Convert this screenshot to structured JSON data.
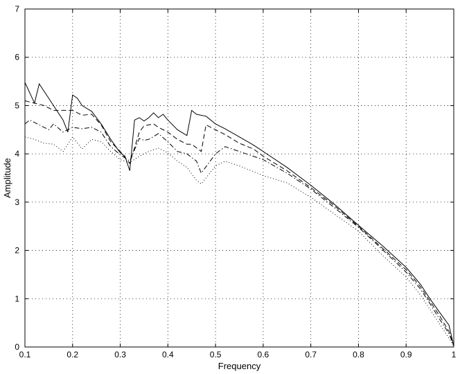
{
  "chart_data": {
    "type": "line",
    "title": "",
    "xlabel": "Frequency",
    "ylabel": "Amplitude",
    "xlim": [
      0.1,
      1
    ],
    "ylim": [
      0,
      7
    ],
    "x_ticks": [
      0.1,
      0.2,
      0.3,
      0.4,
      0.5,
      0.6,
      0.7,
      0.8,
      0.9,
      1
    ],
    "x_tick_labels": [
      "0.1",
      "0.2",
      "0.3",
      "0.4",
      "0.5",
      "0.6",
      "0.7",
      "0.8",
      "0.9",
      "1"
    ],
    "y_ticks": [
      0,
      1,
      2,
      3,
      4,
      5,
      6,
      7
    ],
    "y_tick_labels": [
      "0",
      "1",
      "2",
      "3",
      "4",
      "5",
      "6",
      "7"
    ],
    "grid": true,
    "legend": "none",
    "series": [
      {
        "style": "solid",
        "x": [
          0.1,
          0.12,
          0.13,
          0.15,
          0.18,
          0.19,
          0.2,
          0.21,
          0.22,
          0.24,
          0.26,
          0.28,
          0.3,
          0.31,
          0.32,
          0.33,
          0.34,
          0.35,
          0.36,
          0.37,
          0.38,
          0.39,
          0.4,
          0.42,
          0.44,
          0.45,
          0.46,
          0.48,
          0.5,
          0.52,
          0.55,
          0.58,
          0.6,
          0.65,
          0.7,
          0.75,
          0.8,
          0.85,
          0.9,
          0.93,
          0.95,
          0.97,
          0.99,
          1.0
        ],
        "y": [
          5.48,
          5.05,
          5.45,
          5.15,
          4.7,
          4.45,
          5.22,
          5.15,
          5.0,
          4.88,
          4.62,
          4.3,
          4.02,
          3.95,
          3.65,
          4.7,
          4.75,
          4.68,
          4.75,
          4.85,
          4.75,
          4.82,
          4.7,
          4.5,
          4.38,
          4.9,
          4.82,
          4.78,
          4.62,
          4.52,
          4.35,
          4.18,
          4.05,
          3.72,
          3.35,
          2.95,
          2.52,
          2.1,
          1.65,
          1.3,
          1.0,
          0.72,
          0.45,
          0.02
        ]
      },
      {
        "style": "dashed",
        "x": [
          0.1,
          0.12,
          0.14,
          0.16,
          0.2,
          0.22,
          0.24,
          0.26,
          0.28,
          0.3,
          0.32,
          0.34,
          0.35,
          0.37,
          0.38,
          0.4,
          0.42,
          0.44,
          0.45,
          0.47,
          0.48,
          0.5,
          0.52,
          0.55,
          0.58,
          0.6,
          0.65,
          0.7,
          0.75,
          0.8,
          0.85,
          0.9,
          0.93,
          0.95,
          0.97,
          0.99,
          1.0
        ],
        "y": [
          5.1,
          5.05,
          5.0,
          4.9,
          4.9,
          4.8,
          4.82,
          4.6,
          4.25,
          4.05,
          3.8,
          4.45,
          4.58,
          4.62,
          4.55,
          4.45,
          4.3,
          4.2,
          4.2,
          4.05,
          4.6,
          4.5,
          4.4,
          4.22,
          4.1,
          3.95,
          3.65,
          3.3,
          2.92,
          2.5,
          2.05,
          1.6,
          1.25,
          0.95,
          0.65,
          0.32,
          0.02
        ]
      },
      {
        "style": "dash-dot",
        "x": [
          0.1,
          0.11,
          0.13,
          0.15,
          0.16,
          0.18,
          0.2,
          0.22,
          0.24,
          0.26,
          0.28,
          0.3,
          0.32,
          0.34,
          0.35,
          0.36,
          0.38,
          0.4,
          0.42,
          0.44,
          0.46,
          0.47,
          0.5,
          0.52,
          0.55,
          0.6,
          0.65,
          0.7,
          0.75,
          0.8,
          0.85,
          0.9,
          0.93,
          0.95,
          0.97,
          0.99,
          1.0
        ],
        "y": [
          4.62,
          4.7,
          4.6,
          4.5,
          4.62,
          4.45,
          4.55,
          4.52,
          4.55,
          4.45,
          4.15,
          3.98,
          3.85,
          4.32,
          4.28,
          4.3,
          4.42,
          4.25,
          4.05,
          4.0,
          3.85,
          3.6,
          4.0,
          4.15,
          4.05,
          3.88,
          3.6,
          3.27,
          2.88,
          2.48,
          2.02,
          1.55,
          1.2,
          0.9,
          0.58,
          0.28,
          0.02
        ]
      },
      {
        "style": "dotted",
        "x": [
          0.1,
          0.12,
          0.14,
          0.16,
          0.18,
          0.2,
          0.22,
          0.24,
          0.26,
          0.28,
          0.3,
          0.32,
          0.34,
          0.36,
          0.38,
          0.4,
          0.42,
          0.44,
          0.46,
          0.47,
          0.5,
          0.52,
          0.55,
          0.6,
          0.65,
          0.7,
          0.75,
          0.8,
          0.85,
          0.9,
          0.93,
          0.95,
          0.97,
          0.99,
          1.0
        ],
        "y": [
          4.35,
          4.3,
          4.22,
          4.2,
          4.05,
          4.35,
          4.1,
          4.3,
          4.25,
          4.05,
          3.88,
          3.82,
          3.95,
          4.05,
          4.12,
          4.02,
          3.85,
          3.72,
          3.45,
          3.38,
          3.75,
          3.85,
          3.75,
          3.55,
          3.4,
          3.1,
          2.75,
          2.4,
          1.9,
          1.45,
          1.08,
          0.78,
          0.48,
          0.18,
          0.02
        ]
      }
    ]
  }
}
